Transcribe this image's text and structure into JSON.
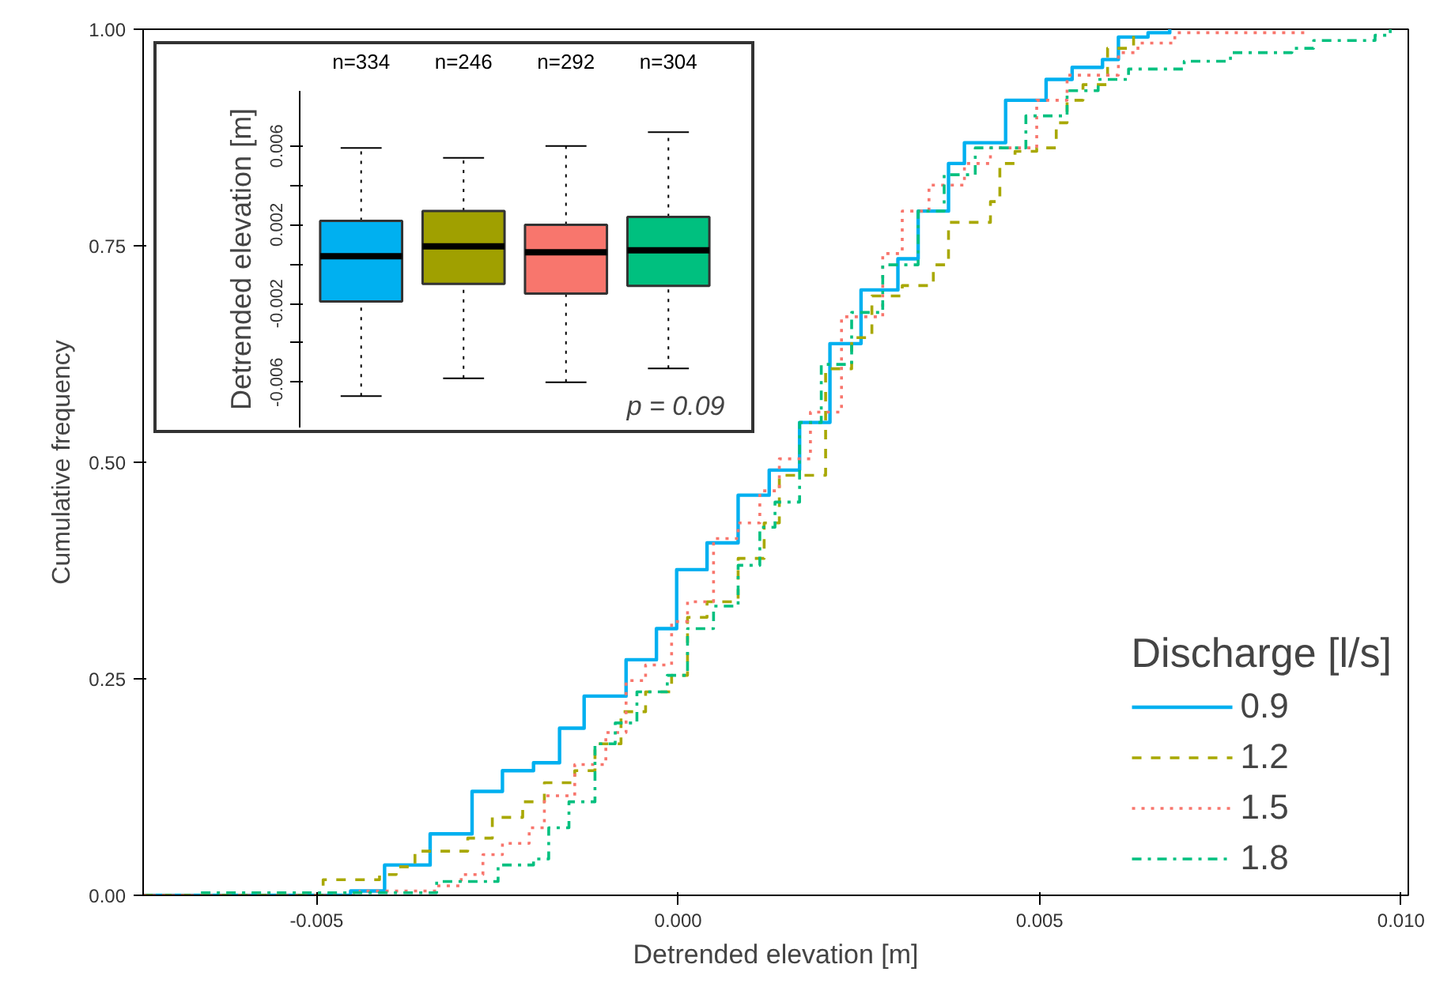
{
  "chart_data": [
    {
      "type": "step",
      "xlabel": "Detrended elevation [m]",
      "ylabel": "Cumulative frequency",
      "legend_title": "Discharge [l/s]",
      "legend": "bottom right",
      "grid": false,
      "xlim": [
        -0.0074,
        0.0101
      ],
      "ylim": [
        0,
        1
      ],
      "xticks": [
        {
          "value": -0.005,
          "label": "-0.005"
        },
        {
          "value": 0,
          "label": "0.000"
        },
        {
          "value": 0.005,
          "label": "0.005"
        },
        {
          "value": 0.01,
          "label": "0.010"
        }
      ],
      "yticks": [
        {
          "value": 0,
          "label": "0.00"
        },
        {
          "value": 0.25,
          "label": "0.25"
        },
        {
          "value": 0.5,
          "label": "0.50"
        },
        {
          "value": 0.75,
          "label": "0.75"
        },
        {
          "value": 1,
          "label": "1.00"
        }
      ],
      "series": [
        {
          "name": "0.9",
          "color": "#00b0f0",
          "line_style": "solid",
          "x": [
            -0.0074,
            -0.00453,
            -0.00406,
            -0.00343,
            -0.00285,
            -0.00243,
            -0.002,
            -0.00164,
            -0.0013,
            -0.00072,
            -0.0003,
            -2e-05,
            0.0004,
            0.00083,
            0.00126,
            0.00168,
            0.0021,
            0.00253,
            0.00304,
            0.00332,
            0.00374,
            0.00396,
            0.00453,
            0.00509,
            0.00545,
            0.00587,
            0.00609,
            0.0065,
            0.0068
          ],
          "values": [
            0,
            0.005,
            0.035,
            0.071,
            0.12,
            0.144,
            0.153,
            0.193,
            0.23,
            0.272,
            0.308,
            0.376,
            0.407,
            0.462,
            0.491,
            0.546,
            0.637,
            0.699,
            0.735,
            0.79,
            0.845,
            0.869,
            0.918,
            0.942,
            0.956,
            0.965,
            0.991,
            0.996,
            1.0
          ]
        },
        {
          "name": "1.2",
          "color": "#a8a800",
          "line_style": "dashed",
          "x": [
            -0.0074,
            -0.00491,
            -0.00413,
            -0.0039,
            -0.00364,
            -0.00291,
            -0.00257,
            -0.00215,
            -0.00185,
            -0.00143,
            -0.00115,
            -0.00079,
            -0.00045,
            -9e-05,
            0.00013,
            0.0004,
            0.00083,
            0.00119,
            0.0014,
            0.00204,
            0.0024,
            0.00268,
            0.0031,
            0.00353,
            0.00374,
            0.00432,
            0.00445,
            0.00466,
            0.00496,
            0.00523,
            0.00538,
            0.0056,
            0.00594,
            0.0063
          ],
          "values": [
            0,
            0.018,
            0.024,
            0.033,
            0.051,
            0.066,
            0.09,
            0.108,
            0.13,
            0.144,
            0.175,
            0.212,
            0.235,
            0.254,
            0.321,
            0.339,
            0.389,
            0.43,
            0.485,
            0.608,
            0.644,
            0.692,
            0.704,
            0.728,
            0.777,
            0.801,
            0.845,
            0.859,
            0.863,
            0.892,
            0.918,
            0.936,
            0.978,
            1.0
          ]
        },
        {
          "name": "1.5",
          "color": "#f8766d",
          "line_style": "dotted",
          "x": [
            -0.0074,
            -0.0044,
            -0.00334,
            -0.003,
            -0.0027,
            -0.00243,
            -0.00206,
            -0.00185,
            -0.00143,
            -0.001,
            -0.00072,
            -0.00045,
            -9e-05,
            0.00013,
            0.00049,
            0.00083,
            0.00113,
            0.0014,
            0.00183,
            0.00226,
            0.00283,
            0.0031,
            0.00347,
            0.00396,
            0.00432,
            0.00496,
            0.00538,
            0.00609,
            0.00636,
            0.00687,
            0.00868
          ],
          "values": [
            0,
            0.005,
            0.011,
            0.024,
            0.047,
            0.06,
            0.078,
            0.115,
            0.151,
            0.188,
            0.248,
            0.266,
            0.316,
            0.339,
            0.412,
            0.43,
            0.467,
            0.504,
            0.558,
            0.668,
            0.741,
            0.79,
            0.82,
            0.845,
            0.863,
            0.918,
            0.947,
            0.973,
            0.984,
            0.996,
            1.0
          ]
        },
        {
          "name": "1.8",
          "color": "#00c07f",
          "line_style": "dashdot",
          "x": [
            -0.0066,
            -0.00334,
            -0.00249,
            -0.002,
            -0.00179,
            -0.00151,
            -0.00115,
            -0.00087,
            -0.00057,
            -0.00015,
            0.00013,
            0.00049,
            0.00083,
            0.00113,
            0.00134,
            0.00168,
            0.00198,
            0.0024,
            0.00283,
            0.00332,
            0.00368,
            0.00411,
            0.00481,
            0.00538,
            0.00581,
            0.00623,
            0.007,
            0.00764,
            0.00849,
            0.00879,
            0.00964,
            0.00985
          ],
          "values": [
            0.003,
            0.016,
            0.035,
            0.042,
            0.078,
            0.108,
            0.175,
            0.199,
            0.235,
            0.254,
            0.308,
            0.334,
            0.381,
            0.425,
            0.454,
            0.546,
            0.613,
            0.673,
            0.728,
            0.79,
            0.832,
            0.863,
            0.9,
            0.929,
            0.942,
            0.954,
            0.963,
            0.973,
            0.978,
            0.987,
            0.993,
            1.0
          ]
        }
      ]
    },
    {
      "type": "box",
      "ylabel": "Detrended elevation [m]",
      "categories": [
        "n=334",
        "n=246",
        "n=292",
        "n=304"
      ],
      "ylim": [
        -0.0083,
        0.0088
      ],
      "yticks": [
        {
          "value": 0.006,
          "label": "0.006"
        },
        {
          "value": 0.004,
          "label": null
        },
        {
          "value": 0.002,
          "label": "0.002"
        },
        {
          "value": 0,
          "label": null
        },
        {
          "value": -0.002,
          "label": "-0.002"
        },
        {
          "value": -0.004,
          "label": null
        },
        {
          "value": -0.006,
          "label": "-0.006"
        }
      ],
      "annotations": [
        "p = 0.09"
      ],
      "colors": [
        "#00b0f0",
        "#a0a000",
        "#f8766d",
        "#00c07f"
      ],
      "boxes": [
        {
          "low": -0.0067,
          "q1": -0.0019,
          "median": 0.0004,
          "q3": 0.0022,
          "high": 0.0059
        },
        {
          "low": -0.0058,
          "q1": -0.001,
          "median": 0.0009,
          "q3": 0.0027,
          "high": 0.0054
        },
        {
          "low": -0.006,
          "q1": -0.0015,
          "median": 0.0006,
          "q3": 0.002,
          "high": 0.006
        },
        {
          "low": -0.0053,
          "q1": -0.0011,
          "median": 0.0007,
          "q3": 0.0024,
          "high": 0.0067
        }
      ]
    }
  ]
}
